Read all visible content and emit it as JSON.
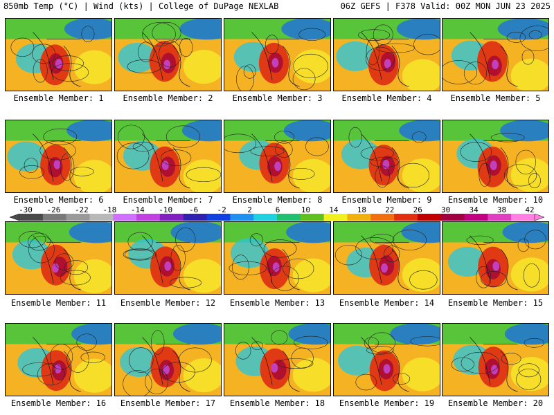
{
  "header": {
    "left": "850mb Temp (°C) | Wind (kts) | College of DuPage NEXLAB",
    "right": "06Z GEFS | F378 Valid: 00Z MON JUN 23 2025"
  },
  "panels": [
    {
      "label": "Ensemble Member: 1"
    },
    {
      "label": "Ensemble Member: 2"
    },
    {
      "label": "Ensemble Member: 3"
    },
    {
      "label": "Ensemble Member: 4"
    },
    {
      "label": "Ensemble Member: 5"
    },
    {
      "label": "Ensemble Member: 6"
    },
    {
      "label": "Ensemble Member: 7"
    },
    {
      "label": "Ensemble Member: 8"
    },
    {
      "label": "Ensemble Member: 9"
    },
    {
      "label": "Ensemble Member: 10"
    },
    {
      "label": "Ensemble Member: 11"
    },
    {
      "label": "Ensemble Member: 12"
    },
    {
      "label": "Ensemble Member: 13"
    },
    {
      "label": "Ensemble Member: 14"
    },
    {
      "label": "Ensemble Member: 15"
    },
    {
      "label": "Ensemble Member: 16"
    },
    {
      "label": "Ensemble Member: 17"
    },
    {
      "label": "Ensemble Member: 18"
    },
    {
      "label": "Ensemble Member: 19"
    },
    {
      "label": "Ensemble Member: 20"
    }
  ],
  "colorbar": {
    "labels": [
      "-30",
      "-26",
      "-22",
      "-18",
      "-14",
      "-10",
      "-6",
      "-2",
      "2",
      "6",
      "10",
      "14",
      "18",
      "22",
      "26",
      "30",
      "34",
      "38",
      "42"
    ],
    "colors": [
      "#4a4a4a",
      "#7a7a7a",
      "#9a9a9a",
      "#b8b8b8",
      "#d070ff",
      "#c040e0",
      "#8020c0",
      "#3020b0",
      "#1040e0",
      "#2090f0",
      "#20d0e0",
      "#20c070",
      "#60c020",
      "#f0f020",
      "#f0b010",
      "#f07010",
      "#e03010",
      "#c00000",
      "#a00040",
      "#c00080",
      "#e040c0",
      "#ff80e0"
    ]
  }
}
